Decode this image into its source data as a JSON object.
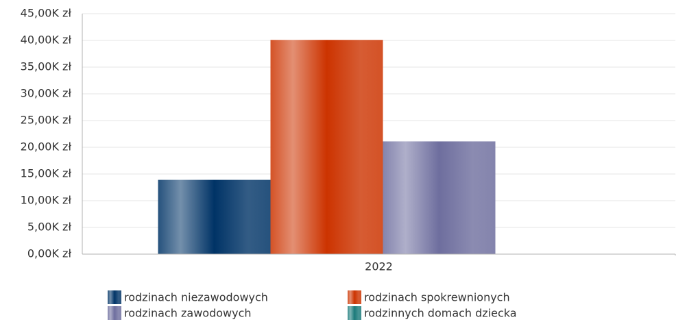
{
  "chart_data": {
    "type": "bar",
    "categories": [
      "2022"
    ],
    "series": [
      {
        "name": "rodzinach niezawodowych",
        "color": "#003366",
        "values": [
          13900
        ]
      },
      {
        "name": "rodzinach spokrewnionych",
        "color": "#cc3300",
        "values": [
          40100
        ]
      },
      {
        "name": "rodzinach zawodowych",
        "color": "#6e6e9e",
        "values": [
          21100
        ]
      },
      {
        "name": "rodzinnych domach dziecka",
        "color": "#1a7a7a",
        "values": [
          null
        ]
      }
    ],
    "ylim": [
      0,
      45000
    ],
    "yticks": [
      {
        "value": 0,
        "label": "0,00K zł"
      },
      {
        "value": 5000,
        "label": "5,00K zł"
      },
      {
        "value": 10000,
        "label": "10,00K zł"
      },
      {
        "value": 15000,
        "label": "15,00K zł"
      },
      {
        "value": 20000,
        "label": "20,00K zł"
      },
      {
        "value": 25000,
        "label": "25,00K zł"
      },
      {
        "value": 30000,
        "label": "30,00K zł"
      },
      {
        "value": 35000,
        "label": "35,00K zł"
      },
      {
        "value": 40000,
        "label": "40,00K zł"
      },
      {
        "value": 45000,
        "label": "45,00K zł"
      }
    ],
    "grid": true,
    "legend": "bottom"
  }
}
